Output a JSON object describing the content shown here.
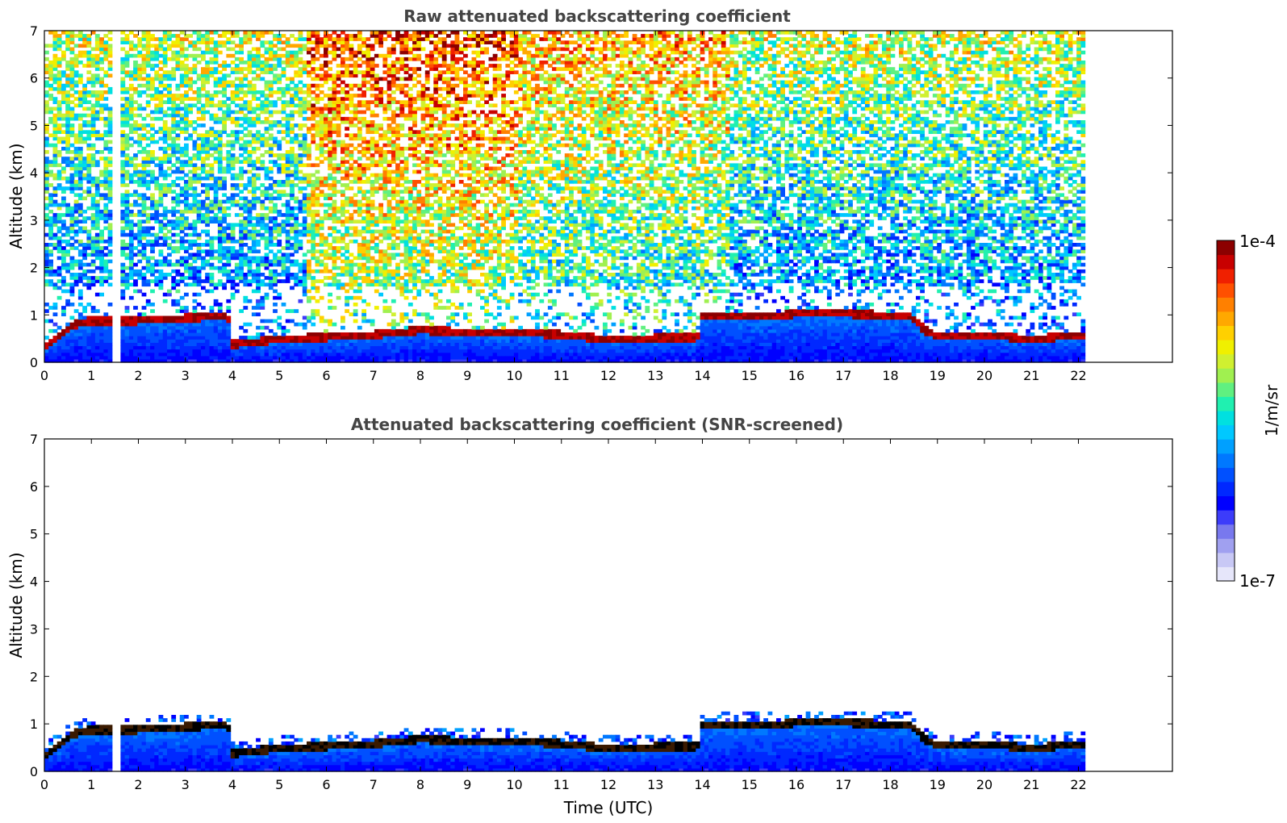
{
  "chart_data": [
    {
      "type": "heatmap",
      "title": "Raw attenuated backscattering coefficient",
      "xlabel": "",
      "ylabel": "Altitude (km)",
      "xlim": [
        0,
        24
      ],
      "ylim": [
        0,
        7
      ],
      "xticks": [
        "0",
        "1",
        "2",
        "3",
        "4",
        "5",
        "6",
        "7",
        "8",
        "9",
        "10",
        "11",
        "12",
        "13",
        "14",
        "15",
        "16",
        "17",
        "18",
        "19",
        "20",
        "21",
        "22"
      ],
      "yticks": [
        "0",
        "1",
        "2",
        "3",
        "4",
        "5",
        "6",
        "7"
      ],
      "data_end_hour": 22.1,
      "gap_hours": [
        1.45,
        1.55
      ],
      "cloud_base_km": [
        [
          0,
          0.3
        ],
        [
          0.6,
          0.75
        ],
        [
          1,
          0.85
        ],
        [
          2,
          0.85
        ],
        [
          3,
          0.9
        ],
        [
          3.9,
          0.95
        ],
        [
          4,
          0.35
        ],
        [
          5,
          0.45
        ],
        [
          6,
          0.5
        ],
        [
          7,
          0.55
        ],
        [
          8,
          0.65
        ],
        [
          9,
          0.6
        ],
        [
          10,
          0.6
        ],
        [
          11,
          0.55
        ],
        [
          12,
          0.45
        ],
        [
          13,
          0.48
        ],
        [
          13.9,
          0.5
        ],
        [
          14,
          0.95
        ],
        [
          15,
          0.95
        ],
        [
          15.6,
          0.95
        ],
        [
          16,
          1.0
        ],
        [
          17,
          1.0
        ],
        [
          18,
          0.95
        ],
        [
          18.4,
          0.95
        ],
        [
          18.8,
          0.6
        ],
        [
          19,
          0.5
        ],
        [
          20,
          0.55
        ],
        [
          21,
          0.45
        ],
        [
          22,
          0.55
        ]
      ],
      "colorscale": "jet",
      "note": "noisy aerosol/molecular signal increasing with altitude; strongest noise 6-9 UTC above 2 km"
    },
    {
      "type": "heatmap",
      "title": "Attenuated backscattering coefficient (SNR-screened)",
      "xlabel": "Time (UTC)",
      "ylabel": "Altitude (km)",
      "xlim": [
        0,
        24
      ],
      "ylim": [
        0,
        7
      ],
      "xticks": [
        "0",
        "1",
        "2",
        "3",
        "4",
        "5",
        "6",
        "7",
        "8",
        "9",
        "10",
        "11",
        "12",
        "13",
        "14",
        "15",
        "16",
        "17",
        "18",
        "19",
        "20",
        "21",
        "22"
      ],
      "yticks": [
        "0",
        "1",
        "2",
        "3",
        "4",
        "5",
        "6",
        "7"
      ],
      "data_end_hour": 22.1,
      "gap_hours": [
        1.45,
        1.55
      ],
      "colorscale": "jet",
      "note": "only boundary-layer signal below ~1 km retained after SNR screening"
    }
  ],
  "colorbar": {
    "label": "1/m/sr",
    "max_label": "1e-4",
    "min_label": "1e-7",
    "colors": [
      "#e6e6fa",
      "#c8c8f5",
      "#a0a0f0",
      "#7878ee",
      "#3c3cfa",
      "#0000ff",
      "#0028ff",
      "#0050ff",
      "#0078ff",
      "#00a0ff",
      "#00c8ff",
      "#00e0e0",
      "#20f0b0",
      "#60f080",
      "#a0f050",
      "#d0f030",
      "#f0f000",
      "#ffd000",
      "#ffa800",
      "#ff8000",
      "#ff5000",
      "#f02000",
      "#c80000",
      "#8c0000"
    ]
  }
}
